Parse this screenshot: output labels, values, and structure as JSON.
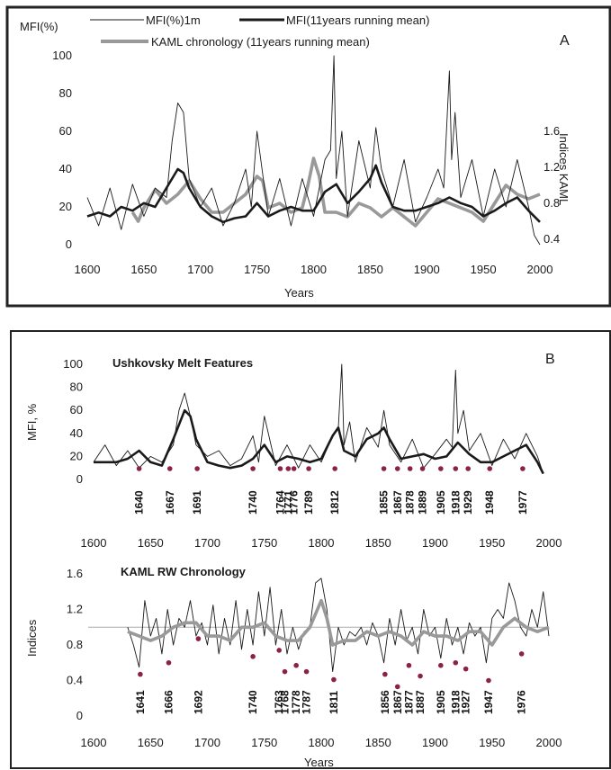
{
  "colors": {
    "thin": "#1a1a1a",
    "thick": "#1a1a1a",
    "kaml": "#999999",
    "marker": "#8b2245",
    "frame": "#222222"
  },
  "panelA": {
    "letter": "A",
    "ylabel": "MFI(%)",
    "right_label": "Indices KAML",
    "xlabel": "Years",
    "legend": [
      "MFI(%)1m",
      "MFI(11years running mean)",
      "KAML chronology (11years running mean)"
    ]
  },
  "panelB": {
    "letter": "B",
    "top_title": "Ushkovsky Melt Features",
    "top_ylabel": "MFI, %",
    "bottom_title": "KAML  RW Chronology",
    "bottom_ylabel": "Indices",
    "xlabel": "Years"
  },
  "chart_data": [
    {
      "type": "line",
      "panel": "A",
      "xlim": [
        1600,
        2000
      ],
      "x_ticks": [
        "1600",
        "1650",
        "1700",
        "1750",
        "1800",
        "1850",
        "1900",
        "1950",
        "2000"
      ],
      "ylim": [
        0,
        100
      ],
      "y_ticks": [
        "0",
        "20",
        "40",
        "60",
        "80",
        "100"
      ],
      "y2lim": [
        0.4,
        1.6
      ],
      "y2_ticks": [
        "0.4",
        "0.8",
        "1.2",
        "1.6"
      ],
      "series": [
        {
          "name": "MFI(%)1m",
          "role": "thin",
          "x": [
            1600,
            1610,
            1620,
            1630,
            1640,
            1650,
            1660,
            1670,
            1675,
            1680,
            1685,
            1690,
            1700,
            1710,
            1720,
            1730,
            1740,
            1745,
            1750,
            1760,
            1770,
            1780,
            1790,
            1800,
            1810,
            1815,
            1818,
            1820,
            1825,
            1830,
            1840,
            1850,
            1855,
            1860,
            1870,
            1880,
            1890,
            1900,
            1910,
            1915,
            1920,
            1922,
            1925,
            1930,
            1940,
            1950,
            1960,
            1970,
            1980,
            1990,
            1995,
            2000
          ],
          "y": [
            25,
            10,
            30,
            8,
            32,
            15,
            30,
            25,
            55,
            75,
            70,
            35,
            20,
            30,
            10,
            22,
            40,
            20,
            60,
            15,
            35,
            10,
            35,
            15,
            45,
            50,
            100,
            35,
            60,
            15,
            55,
            30,
            62,
            40,
            20,
            45,
            12,
            25,
            40,
            30,
            92,
            45,
            70,
            25,
            45,
            15,
            40,
            20,
            45,
            20,
            5,
            0
          ]
        },
        {
          "name": "MFI(11years running mean)",
          "role": "thick",
          "x": [
            1600,
            1610,
            1620,
            1630,
            1640,
            1650,
            1660,
            1670,
            1680,
            1685,
            1690,
            1700,
            1710,
            1720,
            1730,
            1740,
            1750,
            1760,
            1770,
            1780,
            1790,
            1800,
            1810,
            1820,
            1830,
            1840,
            1850,
            1855,
            1860,
            1870,
            1880,
            1890,
            1900,
            1910,
            1920,
            1930,
            1940,
            1950,
            1960,
            1970,
            1980,
            1990,
            2000
          ],
          "y": [
            15,
            17,
            15,
            20,
            18,
            22,
            20,
            30,
            40,
            38,
            30,
            20,
            15,
            12,
            14,
            15,
            22,
            15,
            18,
            20,
            18,
            18,
            28,
            32,
            22,
            28,
            35,
            42,
            33,
            20,
            18,
            18,
            20,
            22,
            25,
            22,
            20,
            15,
            18,
            22,
            25,
            18,
            12
          ]
        },
        {
          "name": "KAML chronology (11years running mean)",
          "role": "kaml",
          "axis": "y2",
          "x": [
            1600,
            1640,
            1645,
            1650,
            1660,
            1670,
            1680,
            1690,
            1700,
            1710,
            1720,
            1730,
            1740,
            1750,
            1755,
            1760,
            1770,
            1780,
            1790,
            1795,
            1800,
            1805,
            1810,
            1820,
            1830,
            1840,
            1850,
            1860,
            1870,
            1880,
            1890,
            1900,
            1910,
            1920,
            1930,
            1940,
            1950,
            1960,
            1970,
            1980,
            1990,
            2000
          ],
          "y": [
            null,
            0.7,
            0.6,
            0.75,
            0.95,
            0.8,
            0.9,
            1.05,
            0.85,
            0.7,
            0.7,
            0.8,
            0.9,
            1.1,
            1.05,
            0.75,
            0.8,
            0.7,
            0.75,
            1.0,
            1.3,
            1.1,
            0.7,
            0.7,
            0.65,
            0.8,
            0.75,
            0.65,
            0.75,
            0.65,
            0.55,
            0.7,
            0.85,
            0.8,
            0.75,
            0.7,
            0.6,
            0.8,
            1.0,
            0.9,
            0.85,
            0.9
          ]
        }
      ]
    },
    {
      "type": "line",
      "panel": "B-top",
      "xlim": [
        1600,
        2000
      ],
      "x_ticks": [
        "1600",
        "1650",
        "1700",
        "1750",
        "1800",
        "1850",
        "1900",
        "1950",
        "2000"
      ],
      "ylim": [
        0,
        100
      ],
      "y_ticks": [
        "0",
        "20",
        "40",
        "60",
        "80",
        "100"
      ],
      "series": [
        {
          "name": "",
          "role": "thin",
          "x": [
            1600,
            1610,
            1620,
            1630,
            1640,
            1650,
            1660,
            1670,
            1675,
            1680,
            1685,
            1690,
            1700,
            1710,
            1720,
            1730,
            1740,
            1745,
            1750,
            1760,
            1770,
            1780,
            1790,
            1800,
            1810,
            1815,
            1818,
            1820,
            1825,
            1830,
            1840,
            1850,
            1855,
            1860,
            1870,
            1880,
            1890,
            1900,
            1910,
            1915,
            1918,
            1920,
            1925,
            1930,
            1940,
            1950,
            1960,
            1970,
            1980,
            1990,
            1995
          ],
          "y": [
            15,
            30,
            12,
            25,
            10,
            20,
            15,
            30,
            60,
            75,
            55,
            30,
            20,
            25,
            12,
            18,
            38,
            15,
            55,
            12,
            30,
            10,
            30,
            15,
            38,
            45,
            100,
            30,
            50,
            15,
            45,
            28,
            60,
            30,
            15,
            35,
            10,
            22,
            35,
            28,
            95,
            40,
            60,
            25,
            40,
            12,
            35,
            18,
            40,
            20,
            5
          ]
        },
        {
          "name": "",
          "role": "thick",
          "x": [
            1600,
            1610,
            1620,
            1630,
            1640,
            1650,
            1660,
            1670,
            1680,
            1685,
            1690,
            1700,
            1710,
            1720,
            1730,
            1740,
            1750,
            1760,
            1770,
            1780,
            1790,
            1800,
            1810,
            1815,
            1820,
            1830,
            1840,
            1850,
            1855,
            1860,
            1870,
            1880,
            1890,
            1900,
            1910,
            1920,
            1930,
            1940,
            1950,
            1960,
            1970,
            1980,
            1990,
            1995
          ],
          "y": [
            15,
            15,
            15,
            18,
            25,
            15,
            12,
            35,
            60,
            55,
            35,
            15,
            12,
            10,
            12,
            18,
            30,
            15,
            20,
            18,
            15,
            18,
            38,
            45,
            25,
            20,
            35,
            40,
            45,
            35,
            18,
            20,
            22,
            18,
            20,
            32,
            22,
            15,
            15,
            20,
            25,
            30,
            15,
            5
          ]
        }
      ],
      "minima": [
        "1640",
        "1667",
        "1691",
        "1740",
        "1764",
        "1771",
        "1776",
        "1789",
        "1812",
        "1855",
        "1867",
        "1878",
        "1889",
        "1905",
        "1918",
        "1929",
        "1948",
        "1977"
      ]
    },
    {
      "type": "line",
      "panel": "B-bottom",
      "xlim": [
        1600,
        2000
      ],
      "x_ticks": [
        "1600",
        "1650",
        "1700",
        "1750",
        "1800",
        "1850",
        "1900",
        "1950",
        "2000"
      ],
      "ylim": [
        0,
        1.6
      ],
      "y_ticks": [
        "0",
        "0.4",
        "0.8",
        "1.2",
        "1.6"
      ],
      "series": [
        {
          "name": "",
          "role": "thin",
          "x": [
            1630,
            1635,
            1640,
            1645,
            1650,
            1655,
            1660,
            1665,
            1670,
            1675,
            1680,
            1685,
            1690,
            1695,
            1700,
            1705,
            1710,
            1715,
            1720,
            1725,
            1730,
            1735,
            1740,
            1745,
            1750,
            1755,
            1760,
            1765,
            1770,
            1775,
            1780,
            1785,
            1790,
            1795,
            1800,
            1805,
            1810,
            1815,
            1820,
            1825,
            1830,
            1835,
            1840,
            1845,
            1850,
            1855,
            1860,
            1865,
            1870,
            1875,
            1880,
            1885,
            1890,
            1895,
            1900,
            1905,
            1910,
            1915,
            1920,
            1925,
            1930,
            1935,
            1940,
            1945,
            1950,
            1955,
            1960,
            1965,
            1970,
            1975,
            1980,
            1985,
            1990,
            1995,
            2000
          ],
          "y": [
            1.0,
            0.8,
            0.55,
            1.3,
            0.9,
            1.1,
            0.7,
            1.2,
            0.8,
            1.1,
            1.0,
            1.3,
            0.9,
            1.05,
            0.8,
            1.25,
            0.7,
            1.1,
            0.8,
            1.3,
            0.75,
            1.2,
            0.8,
            1.4,
            0.9,
            1.45,
            0.8,
            1.2,
            0.7,
            1.0,
            0.75,
            0.95,
            1.0,
            1.5,
            1.55,
            1.2,
            0.5,
            1.0,
            0.8,
            0.95,
            0.9,
            1.0,
            0.8,
            1.05,
            0.9,
            0.6,
            1.1,
            0.8,
            1.2,
            0.85,
            1.0,
            0.7,
            1.2,
            0.9,
            1.0,
            0.65,
            1.1,
            0.8,
            1.0,
            0.7,
            1.05,
            0.9,
            1.0,
            0.6,
            1.1,
            1.2,
            1.1,
            1.5,
            1.3,
            1.0,
            0.9,
            1.2,
            1.0,
            1.4,
            0.9
          ]
        },
        {
          "name": "",
          "role": "kaml",
          "x": [
            1630,
            1640,
            1650,
            1660,
            1670,
            1680,
            1690,
            1700,
            1710,
            1720,
            1730,
            1740,
            1750,
            1760,
            1770,
            1780,
            1790,
            1800,
            1805,
            1810,
            1820,
            1830,
            1840,
            1850,
            1860,
            1870,
            1880,
            1890,
            1900,
            1910,
            1920,
            1930,
            1940,
            1950,
            1960,
            1970,
            1980,
            1990,
            2000
          ],
          "y": [
            0.95,
            0.9,
            0.85,
            0.9,
            1.0,
            1.05,
            1.05,
            0.9,
            0.9,
            0.85,
            1.0,
            1.0,
            1.05,
            0.9,
            0.85,
            0.85,
            1.0,
            1.3,
            1.1,
            0.8,
            0.85,
            0.85,
            0.95,
            0.9,
            0.95,
            0.9,
            0.8,
            0.95,
            0.9,
            0.9,
            0.85,
            0.95,
            0.95,
            0.8,
            1.0,
            1.1,
            1.0,
            0.95,
            1.0
          ]
        }
      ],
      "reference_line": 1.0,
      "minima": [
        "1641",
        "1666",
        "1692",
        "1740",
        "1763",
        "1768",
        "1778",
        "1787",
        "1811",
        "1856",
        "1867",
        "1877",
        "1887",
        "1905",
        "1918",
        "1927",
        "1947",
        "1976"
      ]
    }
  ]
}
